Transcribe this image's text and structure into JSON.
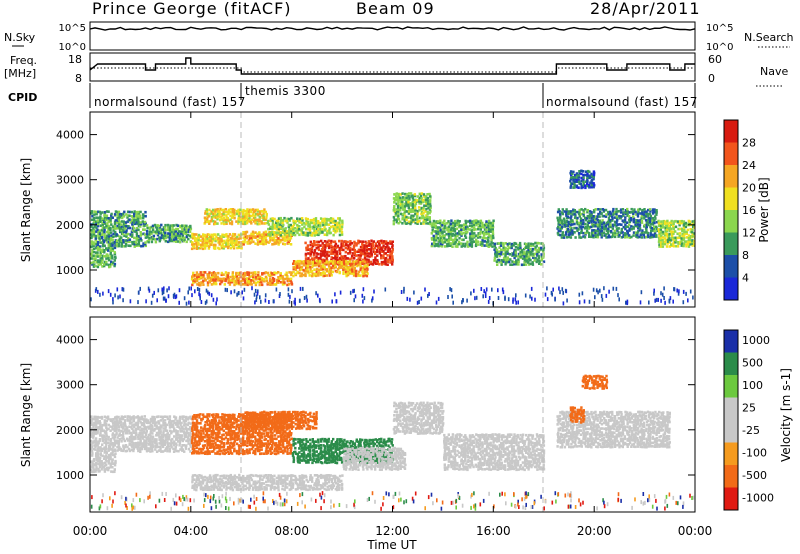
{
  "header": {
    "station": "Prince George (fitACF)",
    "beam": "Beam 09",
    "date": "28/Apr/2011"
  },
  "top_panels": {
    "nsky_label": "N.Sky",
    "nsky_ticks": [
      "10^5",
      "10^0"
    ],
    "nsearch_label": "N.Search",
    "nsearch_ticks": [
      "10^5",
      "10^0"
    ],
    "freq_label_1": "Freq.",
    "freq_label_2": "[MHz]",
    "freq_ticks": [
      "18",
      "8"
    ],
    "nave_label": "Nave",
    "nave_ticks": [
      "60",
      "0"
    ],
    "cpid_label": "CPID",
    "cpid_segments": [
      {
        "name": "normalsound (fast) 157",
        "start_hour": 0
      },
      {
        "name": "themis 3300",
        "start_hour": 6
      },
      {
        "name": "normalsound (fast) 157",
        "start_hour": 18
      }
    ]
  },
  "power_panel": {
    "ylabel": "Slant Range [km]",
    "yticks": [
      "4000",
      "3000",
      "2000",
      "1000"
    ],
    "colorbar_label": "Power [dB]",
    "colorbar_ticks": [
      "28",
      "24",
      "20",
      "16",
      "12",
      "8",
      "4"
    ],
    "colors": [
      "#d81b10",
      "#f2551c",
      "#f5a623",
      "#f0e020",
      "#8bd64e",
      "#3a9a5b",
      "#1c4fa8",
      "#1a28d8"
    ]
  },
  "velocity_panel": {
    "ylabel": "Slant Range [km]",
    "yticks": [
      "4000",
      "3000",
      "2000",
      "1000"
    ],
    "colorbar_label": "Velocity [m s-1]",
    "colorbar_ticks": [
      "1000",
      "500",
      "100",
      "25",
      "-25",
      "-100",
      "-500",
      "-1000"
    ],
    "colors": [
      "#1a2fa8",
      "#2b8c4a",
      "#6cc93f",
      "#c8c8c8",
      "#c8c8c8",
      "#f59b1f",
      "#f26b18",
      "#e01a12"
    ]
  },
  "xaxis": {
    "label": "Time UT",
    "ticks": [
      "00:00",
      "04:00",
      "08:00",
      "12:00",
      "16:00",
      "20:00",
      "00:00"
    ]
  },
  "chart_data": [
    {
      "type": "heatmap",
      "title": "Power [dB]",
      "xlabel": "Time UT",
      "ylabel": "Slant Range [km]",
      "x_range_hours": [
        0,
        24
      ],
      "ylim": [
        180,
        4500
      ],
      "clim": [
        0,
        30
      ],
      "scatter_bands": [
        {
          "t0": 0.0,
          "t1": 2.2,
          "r0": 1500,
          "r1": 2300,
          "level": 10
        },
        {
          "t0": 0.0,
          "t1": 1.0,
          "r0": 1050,
          "r1": 1500,
          "level": 11
        },
        {
          "t0": 2.2,
          "t1": 4.0,
          "r0": 1600,
          "r1": 2000,
          "level": 10
        },
        {
          "t0": 4.0,
          "t1": 6.0,
          "r0": 1450,
          "r1": 1800,
          "level": 18
        },
        {
          "t0": 6.0,
          "t1": 8.0,
          "r0": 1550,
          "r1": 1850,
          "level": 19
        },
        {
          "t0": 4.5,
          "t1": 7.0,
          "r0": 2000,
          "r1": 2350,
          "level": 18
        },
        {
          "t0": 7.0,
          "t1": 10.0,
          "r0": 1750,
          "r1": 2150,
          "level": 14
        },
        {
          "t0": 8.5,
          "t1": 12.0,
          "r0": 1100,
          "r1": 1650,
          "level": 27
        },
        {
          "t0": 4.0,
          "t1": 8.0,
          "r0": 650,
          "r1": 950,
          "level": 21
        },
        {
          "t0": 8.0,
          "t1": 11.0,
          "r0": 850,
          "r1": 1200,
          "level": 20
        },
        {
          "t0": 12.0,
          "t1": 13.5,
          "r0": 2000,
          "r1": 2700,
          "level": 12
        },
        {
          "t0": 13.5,
          "t1": 16.0,
          "r0": 1500,
          "r1": 2100,
          "level": 11
        },
        {
          "t0": 16.0,
          "t1": 18.0,
          "r0": 1100,
          "r1": 1600,
          "level": 10
        },
        {
          "t0": 18.5,
          "t1": 22.5,
          "r0": 1700,
          "r1": 2350,
          "level": 8
        },
        {
          "t0": 19.0,
          "t1": 20.0,
          "r0": 2800,
          "r1": 3200,
          "level": 6
        },
        {
          "t0": 22.5,
          "t1": 24.0,
          "r0": 1500,
          "r1": 2100,
          "level": 14
        }
      ]
    },
    {
      "type": "heatmap",
      "title": "Velocity [m s-1]",
      "xlabel": "Time UT",
      "ylabel": "Slant Range [km]",
      "x_range_hours": [
        0,
        24
      ],
      "ylim": [
        180,
        4500
      ],
      "clim": [
        -1000,
        1000
      ],
      "scatter_bands": [
        {
          "t0": 0.0,
          "t1": 4.0,
          "r0": 1500,
          "r1": 2300,
          "level": 0
        },
        {
          "t0": 0.0,
          "t1": 1.0,
          "r0": 1050,
          "r1": 1500,
          "level": 0
        },
        {
          "t0": 4.0,
          "t1": 8.0,
          "r0": 1450,
          "r1": 2350,
          "level": -150
        },
        {
          "t0": 6.0,
          "t1": 9.0,
          "r0": 2000,
          "r1": 2400,
          "level": -300
        },
        {
          "t0": 8.0,
          "t1": 12.0,
          "r0": 1250,
          "r1": 1800,
          "level": 700
        },
        {
          "t0": 10.0,
          "t1": 12.5,
          "r0": 1100,
          "r1": 1600,
          "level": 80
        },
        {
          "t0": 4.0,
          "t1": 10.0,
          "r0": 650,
          "r1": 1000,
          "level": 90
        },
        {
          "t0": 12.0,
          "t1": 14.0,
          "r0": 1900,
          "r1": 2600,
          "level": 0
        },
        {
          "t0": 14.0,
          "t1": 18.0,
          "r0": 1100,
          "r1": 1900,
          "level": 0
        },
        {
          "t0": 18.5,
          "t1": 23.0,
          "r0": 1600,
          "r1": 2400,
          "level": 0
        },
        {
          "t0": 19.5,
          "t1": 20.5,
          "r0": 2900,
          "r1": 3200,
          "level": -400
        },
        {
          "t0": 19.0,
          "t1": 19.6,
          "r0": 2150,
          "r1": 2500,
          "level": -300
        }
      ]
    }
  ]
}
